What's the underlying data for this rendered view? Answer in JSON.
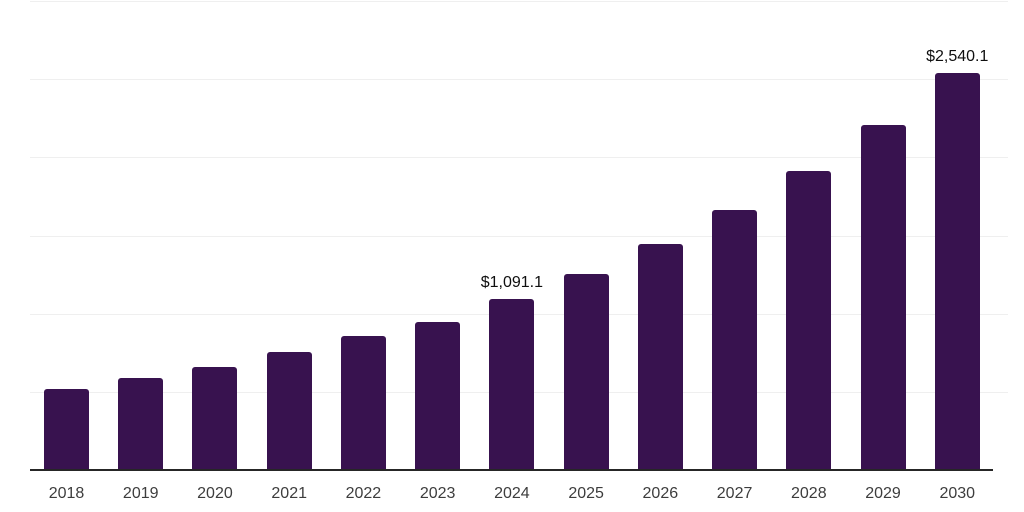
{
  "chart_data": {
    "type": "bar",
    "title": "",
    "xlabel": "",
    "ylabel": "",
    "categories": [
      "2018",
      "2019",
      "2020",
      "2021",
      "2022",
      "2023",
      "2024",
      "2025",
      "2026",
      "2027",
      "2028",
      "2029",
      "2030"
    ],
    "values": [
      517,
      586,
      662,
      755,
      854,
      947,
      1091.1,
      1253,
      1448,
      1665,
      1910,
      2210,
      2540.1
    ],
    "data_labels": [
      "",
      "",
      "",
      "",
      "",
      "",
      "$1,091.1",
      "",
      "",
      "",
      "",
      "",
      "$2,540.1"
    ],
    "ylim": [
      0,
      3000
    ],
    "gridline_step": 500,
    "grid": "horizontal",
    "y_tick_labels_visible": false,
    "legend": "none",
    "colors": {
      "bar": "#38124F",
      "gridline": "#EFEFEF",
      "axis": "#262626",
      "tick_label": "#3D3D3D",
      "data_label": "#0F0F0F",
      "background": "#FFFFFF"
    }
  }
}
